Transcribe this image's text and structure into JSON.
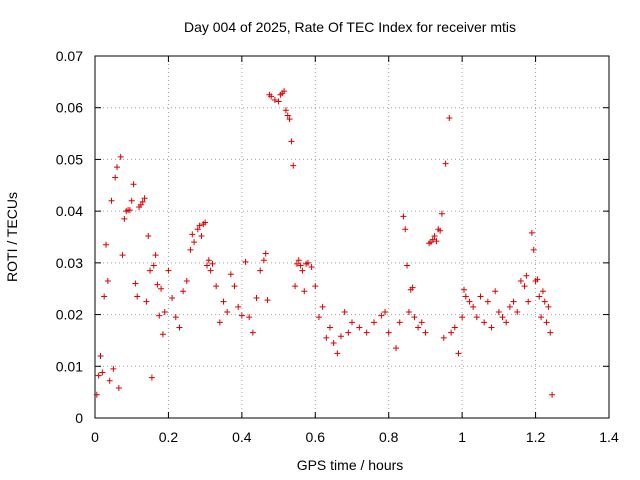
{
  "chart_data": {
    "type": "scatter",
    "title": "Day 004 of 2025, Rate Of TEC Index for receiver mtis",
    "xlabel": "GPS time / hours",
    "ylabel": "ROTI / TECUs",
    "xlim": [
      0,
      1.4
    ],
    "ylim": [
      0,
      0.07
    ],
    "x_ticks": [
      0,
      0.2,
      0.4,
      0.6,
      0.8,
      1,
      1.2,
      1.4
    ],
    "x_tick_labels": [
      "0",
      "0.2",
      "0.4",
      "0.6",
      "0.8",
      "1",
      "1.2",
      "1.4"
    ],
    "y_ticks": [
      0,
      0.01,
      0.02,
      0.03,
      0.04,
      0.05,
      0.06,
      0.07
    ],
    "y_tick_labels": [
      "0",
      "0.01",
      "0.02",
      "0.03",
      "0.04",
      "0.05",
      "0.06",
      "0.07"
    ],
    "grid": true,
    "marker": "+",
    "series_color": "#dd0000",
    "series": [
      {
        "name": "ROTI",
        "points": [
          [
            0.005,
            0.0045
          ],
          [
            0.01,
            0.0082
          ],
          [
            0.015,
            0.012
          ],
          [
            0.02,
            0.0088
          ],
          [
            0.025,
            0.0235
          ],
          [
            0.03,
            0.0335
          ],
          [
            0.035,
            0.0265
          ],
          [
            0.04,
            0.0072
          ],
          [
            0.045,
            0.042
          ],
          [
            0.05,
            0.0095
          ],
          [
            0.055,
            0.0465
          ],
          [
            0.06,
            0.0485
          ],
          [
            0.065,
            0.0058
          ],
          [
            0.07,
            0.0505
          ],
          [
            0.075,
            0.0315
          ],
          [
            0.08,
            0.0385
          ],
          [
            0.085,
            0.04
          ],
          [
            0.09,
            0.0402
          ],
          [
            0.095,
            0.0402
          ],
          [
            0.1,
            0.042
          ],
          [
            0.105,
            0.0452
          ],
          [
            0.11,
            0.026
          ],
          [
            0.115,
            0.0235
          ],
          [
            0.12,
            0.0408
          ],
          [
            0.125,
            0.0412
          ],
          [
            0.13,
            0.0418
          ],
          [
            0.135,
            0.0425
          ],
          [
            0.14,
            0.0225
          ],
          [
            0.145,
            0.0352
          ],
          [
            0.15,
            0.0285
          ],
          [
            0.155,
            0.0078
          ],
          [
            0.16,
            0.0295
          ],
          [
            0.165,
            0.0315
          ],
          [
            0.17,
            0.0258
          ],
          [
            0.175,
            0.0198
          ],
          [
            0.18,
            0.025
          ],
          [
            0.185,
            0.0162
          ],
          [
            0.19,
            0.0205
          ],
          [
            0.2,
            0.0285
          ],
          [
            0.21,
            0.0232
          ],
          [
            0.22,
            0.0195
          ],
          [
            0.23,
            0.0175
          ],
          [
            0.24,
            0.0245
          ],
          [
            0.25,
            0.0265
          ],
          [
            0.26,
            0.0325
          ],
          [
            0.265,
            0.0355
          ],
          [
            0.27,
            0.034
          ],
          [
            0.28,
            0.0365
          ],
          [
            0.285,
            0.0372
          ],
          [
            0.29,
            0.0352
          ],
          [
            0.295,
            0.0375
          ],
          [
            0.3,
            0.0378
          ],
          [
            0.305,
            0.0295
          ],
          [
            0.31,
            0.0305
          ],
          [
            0.315,
            0.0285
          ],
          [
            0.32,
            0.0298
          ],
          [
            0.33,
            0.0255
          ],
          [
            0.34,
            0.0185
          ],
          [
            0.35,
            0.0225
          ],
          [
            0.36,
            0.0205
          ],
          [
            0.37,
            0.0278
          ],
          [
            0.38,
            0.0255
          ],
          [
            0.39,
            0.0215
          ],
          [
            0.4,
            0.0198
          ],
          [
            0.41,
            0.0302
          ],
          [
            0.42,
            0.0195
          ],
          [
            0.43,
            0.0165
          ],
          [
            0.44,
            0.0232
          ],
          [
            0.45,
            0.0285
          ],
          [
            0.46,
            0.0305
          ],
          [
            0.465,
            0.0318
          ],
          [
            0.47,
            0.0228
          ],
          [
            0.475,
            0.0625
          ],
          [
            0.48,
            0.0622
          ],
          [
            0.49,
            0.0615
          ],
          [
            0.5,
            0.0612
          ],
          [
            0.505,
            0.0625
          ],
          [
            0.51,
            0.0628
          ],
          [
            0.515,
            0.0632
          ],
          [
            0.52,
            0.0595
          ],
          [
            0.525,
            0.0585
          ],
          [
            0.53,
            0.0578
          ],
          [
            0.535,
            0.0535
          ],
          [
            0.54,
            0.0488
          ],
          [
            0.545,
            0.0255
          ],
          [
            0.55,
            0.0298
          ],
          [
            0.555,
            0.0305
          ],
          [
            0.56,
            0.0295
          ],
          [
            0.565,
            0.0285
          ],
          [
            0.57,
            0.0245
          ],
          [
            0.575,
            0.0298
          ],
          [
            0.58,
            0.03
          ],
          [
            0.59,
            0.0292
          ],
          [
            0.6,
            0.0255
          ],
          [
            0.61,
            0.0195
          ],
          [
            0.62,
            0.0215
          ],
          [
            0.63,
            0.0155
          ],
          [
            0.64,
            0.0175
          ],
          [
            0.65,
            0.0145
          ],
          [
            0.66,
            0.0125
          ],
          [
            0.67,
            0.0158
          ],
          [
            0.68,
            0.0205
          ],
          [
            0.69,
            0.0165
          ],
          [
            0.7,
            0.0185
          ],
          [
            0.72,
            0.0175
          ],
          [
            0.74,
            0.0165
          ],
          [
            0.76,
            0.0185
          ],
          [
            0.78,
            0.0198
          ],
          [
            0.79,
            0.0205
          ],
          [
            0.8,
            0.0165
          ],
          [
            0.82,
            0.0135
          ],
          [
            0.83,
            0.0185
          ],
          [
            0.84,
            0.039
          ],
          [
            0.845,
            0.0365
          ],
          [
            0.85,
            0.0295
          ],
          [
            0.855,
            0.0205
          ],
          [
            0.86,
            0.0248
          ],
          [
            0.865,
            0.0252
          ],
          [
            0.87,
            0.0195
          ],
          [
            0.88,
            0.0175
          ],
          [
            0.89,
            0.0185
          ],
          [
            0.9,
            0.0165
          ],
          [
            0.91,
            0.0338
          ],
          [
            0.915,
            0.034
          ],
          [
            0.92,
            0.0345
          ],
          [
            0.925,
            0.0352
          ],
          [
            0.93,
            0.0342
          ],
          [
            0.935,
            0.0365
          ],
          [
            0.94,
            0.0362
          ],
          [
            0.945,
            0.0395
          ],
          [
            0.95,
            0.0155
          ],
          [
            0.955,
            0.0492
          ],
          [
            0.965,
            0.058
          ],
          [
            0.97,
            0.0165
          ],
          [
            0.98,
            0.0175
          ],
          [
            0.99,
            0.0125
          ],
          [
            1.0,
            0.0195
          ],
          [
            1.005,
            0.0248
          ],
          [
            1.01,
            0.0235
          ],
          [
            1.02,
            0.0225
          ],
          [
            1.03,
            0.0215
          ],
          [
            1.04,
            0.0195
          ],
          [
            1.05,
            0.0235
          ],
          [
            1.06,
            0.0185
          ],
          [
            1.07,
            0.0225
          ],
          [
            1.08,
            0.0175
          ],
          [
            1.09,
            0.0245
          ],
          [
            1.1,
            0.0205
          ],
          [
            1.11,
            0.0195
          ],
          [
            1.12,
            0.0185
          ],
          [
            1.13,
            0.0215
          ],
          [
            1.14,
            0.0225
          ],
          [
            1.15,
            0.0205
          ],
          [
            1.16,
            0.0265
          ],
          [
            1.17,
            0.0255
          ],
          [
            1.175,
            0.0275
          ],
          [
            1.18,
            0.0225
          ],
          [
            1.19,
            0.0358
          ],
          [
            1.195,
            0.0325
          ],
          [
            1.2,
            0.0265
          ],
          [
            1.205,
            0.0268
          ],
          [
            1.21,
            0.0235
          ],
          [
            1.215,
            0.0195
          ],
          [
            1.22,
            0.0245
          ],
          [
            1.225,
            0.0225
          ],
          [
            1.23,
            0.0185
          ],
          [
            1.235,
            0.0215
          ],
          [
            1.24,
            0.0165
          ],
          [
            1.245,
            0.0045
          ]
        ]
      }
    ]
  }
}
